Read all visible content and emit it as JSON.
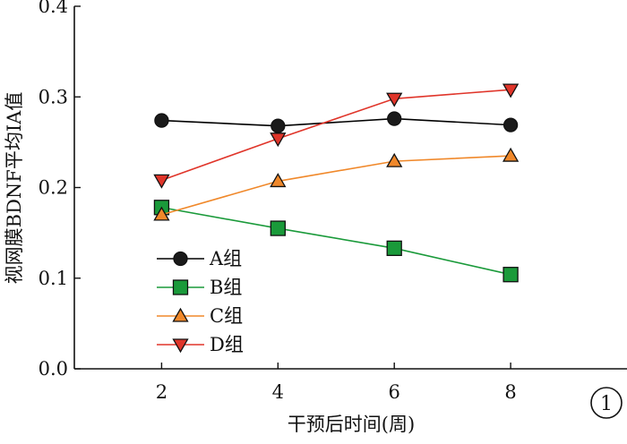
{
  "chart_data": {
    "type": "line",
    "x": [
      2,
      4,
      6,
      8
    ],
    "xlim": [
      0.5,
      10
    ],
    "ylim": [
      0,
      0.4
    ],
    "xticks": [
      "2",
      "4",
      "6",
      "8"
    ],
    "yticks": [
      "0.0",
      "0.1",
      "0.2",
      "0.3",
      "0.4"
    ],
    "xlabel": "干预后时间(周)",
    "ylabel": "视网膜BDNF平均IA值",
    "panel_label": "1",
    "grid": false,
    "legend_position": "lower-left",
    "series": [
      {
        "name": "A组",
        "marker": "circle",
        "color": "#000000",
        "marker_fill": "#1a1a1a",
        "values": [
          0.274,
          0.268,
          0.276,
          0.269
        ]
      },
      {
        "name": "B组",
        "marker": "square",
        "color": "#1a9a3a",
        "marker_fill": "#1a9a3a",
        "values": [
          0.178,
          0.155,
          0.133,
          0.104
        ]
      },
      {
        "name": "C组",
        "marker": "triangle-up",
        "color": "#f0882a",
        "marker_fill": "#f0882a",
        "values": [
          0.17,
          0.207,
          0.229,
          0.235
        ]
      },
      {
        "name": "D组",
        "marker": "triangle-down",
        "color": "#e0352a",
        "marker_fill": "#e0352a",
        "values": [
          0.208,
          0.254,
          0.298,
          0.308
        ]
      }
    ]
  }
}
